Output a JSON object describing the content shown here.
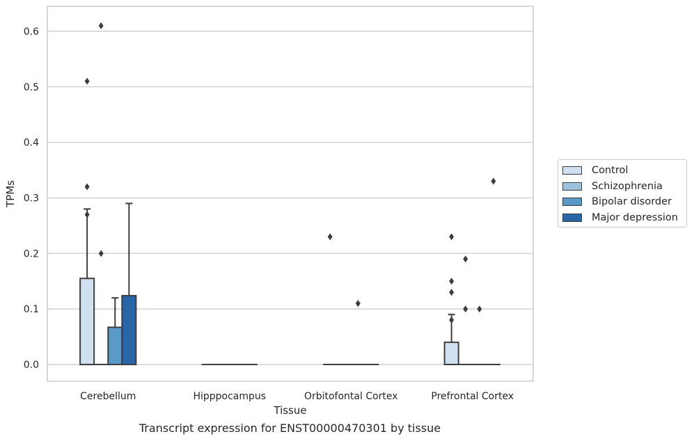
{
  "chart_data": {
    "type": "box",
    "xlabel": "Tissue",
    "ylabel": "TPMs",
    "ylim": [
      -0.03,
      0.645
    ],
    "yticks": [
      "0.0",
      "0.1",
      "0.2",
      "0.3",
      "0.4",
      "0.5",
      "0.6"
    ],
    "grid": "horizontal",
    "legend_position": "right",
    "categories": [
      "Cerebellum",
      "Hipppocampus",
      "Orbitofontal Cortex",
      "Prefrontal Cortex"
    ],
    "series": [
      {
        "name": "Control",
        "color": "#d1e0f0",
        "boxes": [
          {
            "q1": 0,
            "median": 0,
            "q3": 0.155,
            "whisker_low": 0,
            "whisker_high": 0.28,
            "outliers": [
              0.51,
              0.32,
              0.27
            ]
          },
          {
            "q1": 0,
            "median": 0,
            "q3": 0,
            "whisker_low": 0,
            "whisker_high": 0,
            "outliers": []
          },
          {
            "q1": 0,
            "median": 0,
            "q3": 0,
            "whisker_low": 0,
            "whisker_high": 0,
            "outliers": [
              0.23
            ]
          },
          {
            "q1": 0,
            "median": 0,
            "q3": 0.04,
            "whisker_low": 0,
            "whisker_high": 0.09,
            "outliers": [
              0.15,
              0.13,
              0.23,
              0.08
            ]
          }
        ]
      },
      {
        "name": "Schizophrenia",
        "color": "#9ec2de",
        "boxes": [
          {
            "q1": 0,
            "median": 0,
            "q3": 0,
            "whisker_low": 0,
            "whisker_high": 0,
            "outliers": [
              0.61,
              0.2
            ]
          },
          {
            "q1": 0,
            "median": 0,
            "q3": 0,
            "whisker_low": 0,
            "whisker_high": 0,
            "outliers": []
          },
          {
            "q1": 0,
            "median": 0,
            "q3": 0,
            "whisker_low": 0,
            "whisker_high": 0,
            "outliers": []
          },
          {
            "q1": 0,
            "median": 0,
            "q3": 0,
            "whisker_low": 0,
            "whisker_high": 0,
            "outliers": [
              0.1,
              0.19
            ]
          }
        ]
      },
      {
        "name": "Bipolar disorder",
        "color": "#5a9ac8",
        "boxes": [
          {
            "q1": 0,
            "median": 0,
            "q3": 0.067,
            "whisker_low": 0,
            "whisker_high": 0.12,
            "outliers": []
          },
          {
            "q1": 0,
            "median": 0,
            "q3": 0,
            "whisker_low": 0,
            "whisker_high": 0,
            "outliers": []
          },
          {
            "q1": 0,
            "median": 0,
            "q3": 0,
            "whisker_low": 0,
            "whisker_high": 0,
            "outliers": [
              0.11
            ]
          },
          {
            "q1": 0,
            "median": 0,
            "q3": 0,
            "whisker_low": 0,
            "whisker_high": 0,
            "outliers": [
              0.1
            ]
          }
        ]
      },
      {
        "name": "Major depression",
        "color": "#2866a8",
        "boxes": [
          {
            "q1": 0,
            "median": 0,
            "q3": 0.124,
            "whisker_low": 0,
            "whisker_high": 0.29,
            "outliers": []
          },
          {
            "q1": 0,
            "median": 0,
            "q3": 0,
            "whisker_low": 0,
            "whisker_high": 0,
            "outliers": []
          },
          {
            "q1": 0,
            "median": 0,
            "q3": 0,
            "whisker_low": 0,
            "whisker_high": 0,
            "outliers": []
          },
          {
            "q1": 0,
            "median": 0,
            "q3": 0,
            "whisker_low": 0,
            "whisker_high": 0,
            "outliers": [
              0.33
            ]
          }
        ]
      }
    ]
  },
  "caption": "Transcript expression for ENST00000470301 by tissue"
}
